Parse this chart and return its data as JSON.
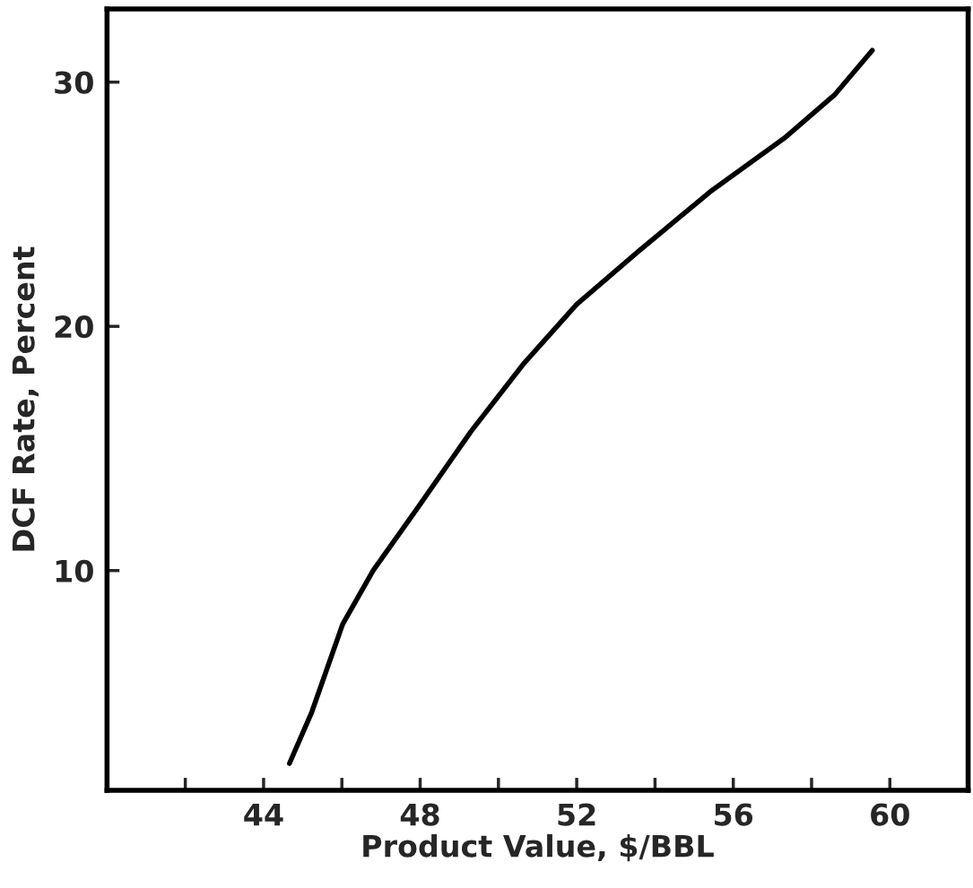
{
  "chart_data": {
    "type": "line",
    "xlabel": "Product Value, $/BBL",
    "ylabel": "DCF Rate, Percent",
    "x": [
      44.66,
      45.23,
      46.02,
      46.8,
      47.95,
      49.3,
      50.66,
      52.0,
      53.6,
      55.4,
      57.3,
      58.6,
      59.55
    ],
    "series": [
      {
        "color": "#000000",
        "values": [
          2.1,
          4.2,
          7.8,
          10.0,
          12.6,
          15.7,
          18.5,
          20.9,
          23.1,
          25.5,
          27.7,
          29.5,
          31.3
        ]
      }
    ],
    "xlim": [
      40,
      62
    ],
    "ylim": [
      1,
      33
    ],
    "xticks": [
      {
        "value": 42,
        "label": null
      },
      44,
      {
        "value": 46,
        "label": null
      },
      48,
      {
        "value": 50,
        "label": null
      },
      52,
      {
        "value": 54,
        "label": null
      },
      56,
      {
        "value": 58,
        "label": null
      },
      60
    ],
    "yticks": [
      10,
      20,
      30
    ],
    "grid": false,
    "legend": false,
    "marker": "none",
    "line_style": "solid"
  }
}
